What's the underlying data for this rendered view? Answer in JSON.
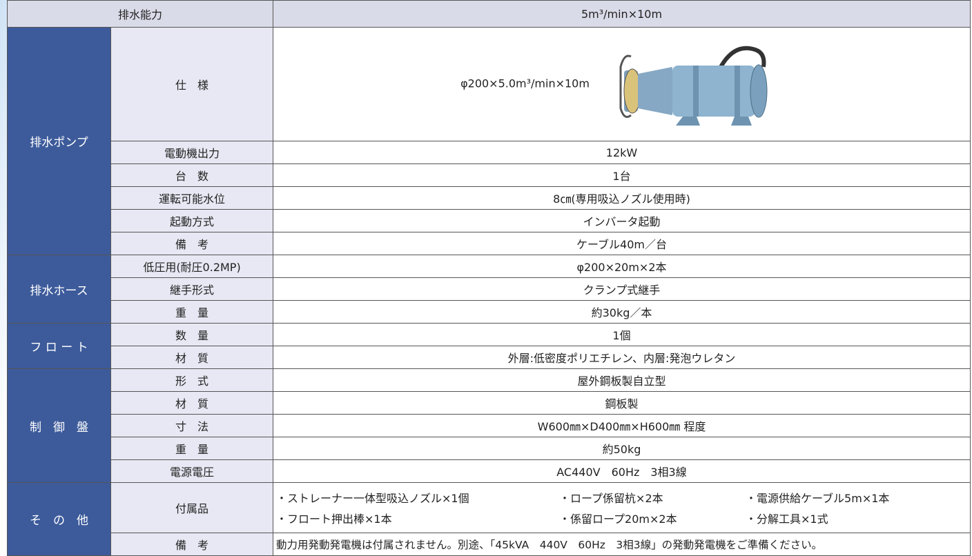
{
  "header": {
    "label": "排水能力",
    "value": "5m³/min×10m"
  },
  "groups": [
    {
      "name": "排水ポンプ",
      "rows": [
        {
          "item": "仕　様",
          "value": "φ200×5.0m³/min×10m"
        },
        {
          "item": "電動機出力",
          "value": "12kW"
        },
        {
          "item": "台　数",
          "value": "1台"
        },
        {
          "item": "運転可能水位",
          "value": "8㎝(専用吸込ノズル使用時)"
        },
        {
          "item": "起動方式",
          "value": "インバータ起動"
        },
        {
          "item": "備　考",
          "value": "ケーブル40m／台"
        }
      ]
    },
    {
      "name": "排水ホース",
      "rows": [
        {
          "item": "低圧用(耐圧0.2MP)",
          "value": "φ200×20m×2本"
        },
        {
          "item": "継手形式",
          "value": "クランプ式継手"
        },
        {
          "item": "重　量",
          "value": "約30kg／本"
        }
      ]
    },
    {
      "name": "フ ロ ー ト",
      "rows": [
        {
          "item": "数　量",
          "value": "1個"
        },
        {
          "item": "材　質",
          "value": "外層:低密度ポリエチレン、内層:発泡ウレタン"
        }
      ]
    },
    {
      "name": "制　御　盤",
      "rows": [
        {
          "item": "形　式",
          "value": "屋外鋼板製自立型"
        },
        {
          "item": "材　質",
          "value": "鋼板製"
        },
        {
          "item": "寸　法",
          "value": "W600㎜×D400㎜×H600㎜ 程度"
        },
        {
          "item": "重　量",
          "value": "約50kg"
        },
        {
          "item": "電源電圧",
          "value": "AC440V　60Hz　3相3線"
        }
      ]
    },
    {
      "name": "そ　の　他",
      "rows": [
        {
          "item": "付属品",
          "values": [
            "・ストレーナー一体型吸込ノズル×1個",
            "・ロープ係留杭×2本",
            "・電源供給ケーブル5m×1本",
            "・フロート押出棒×1本",
            "・係留ロープ20m×2本",
            "・分解工具×1式"
          ]
        },
        {
          "item": "備　考",
          "value": "動力用発動発電機は付属されません。別途、「45kVA　440V　60Hz　3相3線」の発動発電機をご準備ください。"
        }
      ]
    }
  ]
}
